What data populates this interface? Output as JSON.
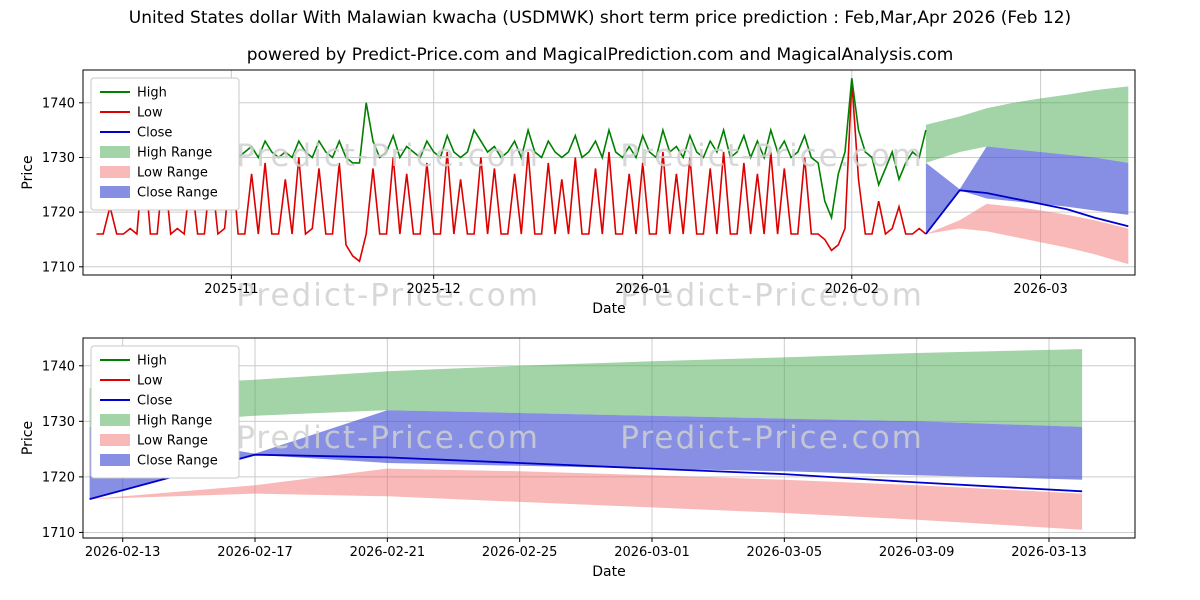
{
  "title": "United States dollar With Malawian kwacha (USDMWK) short term price prediction : Feb,Mar,Apr 2026 (Feb 12)",
  "subtitle": "powered by Predict-Price.com and MagicalPrediction.com and MagicalAnalysis.com",
  "watermark": "Predict-Price.com",
  "colors": {
    "high": "#008000",
    "low": "#dd0000",
    "close": "#0000cd",
    "high_range": "rgba(70,170,80,0.5)",
    "low_range": "rgba(245,100,100,0.45)",
    "close_range": "rgba(60,75,210,0.62)",
    "grid": "#cccccc",
    "watermark": "#d0d0d0",
    "frame": "#000000"
  },
  "legend": {
    "items": [
      {
        "label": "High",
        "swatch": "line",
        "color": "high"
      },
      {
        "label": "Low",
        "swatch": "line",
        "color": "low"
      },
      {
        "label": "Close",
        "swatch": "line",
        "color": "close"
      },
      {
        "label": "High Range",
        "swatch": "patch",
        "color": "high_range"
      },
      {
        "label": "Low Range",
        "swatch": "patch",
        "color": "low_range"
      },
      {
        "label": "Close Range",
        "swatch": "patch",
        "color": "close_range"
      }
    ]
  },
  "chart_data": [
    {
      "type": "line",
      "name": "history-and-forecast",
      "xlabel": "Date",
      "ylabel": "Price",
      "x_domain": [
        -2,
        154
      ],
      "y_domain": [
        1708.5,
        1746
      ],
      "y_ticks": [
        1710,
        1720,
        1730,
        1740
      ],
      "x_ticks": [
        {
          "v": 20,
          "label": "2025-11"
        },
        {
          "v": 50,
          "label": "2025-12"
        },
        {
          "v": 81,
          "label": "2026-01"
        },
        {
          "v": 112,
          "label": "2026-02"
        },
        {
          "v": 140,
          "label": "2026-03"
        }
      ],
      "historical": {
        "x_start": 0,
        "x_step": 1,
        "high": [
          1731,
          1732,
          1730,
          1733,
          1731,
          1730,
          1732,
          1735,
          1731,
          1730,
          1733,
          1731,
          1730,
          1732,
          1731,
          1730,
          1731,
          1733,
          1730,
          1731,
          1739,
          1730,
          1731,
          1732,
          1730,
          1733,
          1731,
          1730,
          1731,
          1730,
          1733,
          1731,
          1730,
          1733,
          1731,
          1730,
          1733,
          1730,
          1729,
          1729,
          1740,
          1733,
          1730,
          1731,
          1734,
          1730,
          1732,
          1731,
          1730,
          1733,
          1731,
          1730,
          1734,
          1731,
          1730,
          1731,
          1735,
          1733,
          1731,
          1732,
          1730,
          1731,
          1733,
          1730,
          1735,
          1731,
          1730,
          1733,
          1731,
          1730,
          1731,
          1734,
          1730,
          1731,
          1733,
          1730,
          1735,
          1731,
          1730,
          1732,
          1730,
          1734,
          1731,
          1730,
          1735,
          1731,
          1732,
          1730,
          1734,
          1731,
          1730,
          1733,
          1731,
          1735,
          1730,
          1731,
          1734,
          1730,
          1733,
          1730,
          1735,
          1731,
          1733,
          1730,
          1731,
          1734,
          1730,
          1729,
          1722,
          1719,
          1727,
          1731,
          1744.5,
          1735,
          1731,
          1730,
          1725,
          1728,
          1731,
          1726,
          1729,
          1731,
          1730,
          1735
        ],
        "low": [
          1716,
          1716,
          1721,
          1716,
          1716,
          1717,
          1716,
          1731,
          1716,
          1716,
          1729,
          1716,
          1717,
          1716,
          1727,
          1716,
          1716,
          1728,
          1716,
          1717,
          1731,
          1716,
          1716,
          1727,
          1716,
          1729,
          1716,
          1716,
          1726,
          1716,
          1730,
          1716,
          1717,
          1728,
          1716,
          1716,
          1729,
          1714,
          1712,
          1711,
          1716,
          1728,
          1716,
          1716,
          1730,
          1716,
          1727,
          1716,
          1716,
          1729,
          1716,
          1716,
          1731,
          1716,
          1726,
          1716,
          1716,
          1730,
          1716,
          1728,
          1716,
          1716,
          1727,
          1716,
          1731,
          1716,
          1716,
          1729,
          1716,
          1726,
          1716,
          1730,
          1716,
          1716,
          1728,
          1716,
          1731,
          1716,
          1716,
          1727,
          1716,
          1729,
          1716,
          1716,
          1731,
          1716,
          1727,
          1716,
          1730,
          1716,
          1716,
          1728,
          1716,
          1731,
          1716,
          1716,
          1729,
          1716,
          1727,
          1716,
          1731,
          1716,
          1728,
          1716,
          1716,
          1730,
          1716,
          1716,
          1715,
          1713,
          1714,
          1717,
          1744,
          1726,
          1716,
          1716,
          1722,
          1716,
          1717,
          1721,
          1716,
          1716,
          1717,
          1716
        ]
      },
      "forecast": {
        "x": [
          123,
          128,
          132,
          136,
          140,
          144,
          148,
          153
        ],
        "close": [
          1716,
          1724,
          1723.5,
          1722.5,
          1721.5,
          1720.5,
          1719,
          1717.4
        ],
        "high": [
          1735,
          1731.5,
          1732,
          1731.5,
          1731,
          1730.5,
          1730,
          1729
        ],
        "low": [
          1716,
          1718,
          1717.5,
          1716.5,
          1716,
          1715.3,
          1714.3,
          1713
        ],
        "high_range_upper": [
          1736,
          1737.5,
          1739,
          1740,
          1740.8,
          1741.5,
          1742.3,
          1743
        ],
        "high_range_lower": [
          1729,
          1731,
          1732,
          1731.5,
          1731,
          1730.5,
          1730,
          1729
        ],
        "close_range_upper": [
          1729,
          1724.2,
          1732,
          1731.5,
          1731,
          1730.5,
          1730,
          1729
        ],
        "close_range_lower": [
          1716,
          1724,
          1722.5,
          1722,
          1721.5,
          1721,
          1720.3,
          1719.5
        ],
        "low_range_upper": [
          1716,
          1718.5,
          1721.5,
          1721,
          1720.3,
          1719.5,
          1718.5,
          1717
        ],
        "low_range_lower": [
          1716,
          1717,
          1716.5,
          1715.5,
          1714.5,
          1713.5,
          1712.3,
          1710.5
        ]
      }
    },
    {
      "type": "line",
      "name": "forecast-detail",
      "xlabel": "Date",
      "ylabel": "Price",
      "x_domain": [
        122.8,
        154.6
      ],
      "y_domain": [
        1709,
        1745
      ],
      "y_ticks": [
        1710,
        1720,
        1730,
        1740
      ],
      "x_ticks": [
        {
          "v": 124,
          "label": "2026-02-13"
        },
        {
          "v": 128,
          "label": "2026-02-17"
        },
        {
          "v": 132,
          "label": "2026-02-21"
        },
        {
          "v": 136,
          "label": "2026-02-25"
        },
        {
          "v": 140,
          "label": "2026-03-01"
        },
        {
          "v": 144,
          "label": "2026-03-05"
        },
        {
          "v": 148,
          "label": "2026-03-09"
        },
        {
          "v": 152,
          "label": "2026-03-13"
        }
      ],
      "forecast": {
        "x": [
          123,
          128,
          132,
          136,
          140,
          144,
          148,
          153
        ],
        "close": [
          1716,
          1724,
          1723.5,
          1722.5,
          1721.5,
          1720.5,
          1719,
          1717.4
        ],
        "high": [
          1735,
          1731.5,
          1732,
          1731.5,
          1731,
          1730.5,
          1730,
          1729
        ],
        "low": [
          1716,
          1718,
          1717.5,
          1716.5,
          1716,
          1715.3,
          1714.3,
          1713
        ],
        "high_range_upper": [
          1736,
          1737.5,
          1739,
          1740,
          1740.8,
          1741.5,
          1742.3,
          1743
        ],
        "high_range_lower": [
          1729,
          1731,
          1732,
          1731.5,
          1731,
          1730.5,
          1730,
          1729
        ],
        "close_range_upper": [
          1729,
          1724.2,
          1732,
          1731.5,
          1731,
          1730.5,
          1730,
          1729
        ],
        "close_range_lower": [
          1716,
          1724,
          1722.5,
          1722,
          1721.5,
          1721,
          1720.3,
          1719.5
        ],
        "low_range_upper": [
          1716,
          1718.5,
          1721.5,
          1721,
          1720.3,
          1719.5,
          1718.5,
          1717
        ],
        "low_range_lower": [
          1716,
          1717,
          1716.5,
          1715.5,
          1714.5,
          1713.5,
          1712.3,
          1710.5
        ]
      }
    }
  ]
}
